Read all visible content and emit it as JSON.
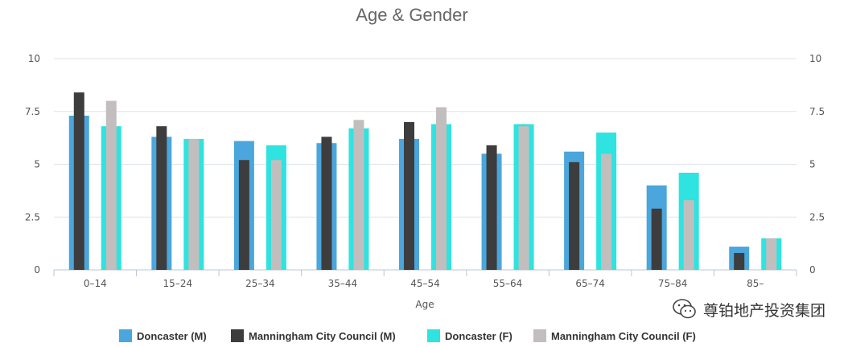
{
  "chart_data": {
    "type": "bar",
    "title": "Age & Gender",
    "xlabel": "Age",
    "ylabel": "",
    "categories": [
      "0–14",
      "15–24",
      "25–34",
      "35–44",
      "45–54",
      "55–64",
      "65–74",
      "75–84",
      "85–"
    ],
    "ylim": [
      0,
      10
    ],
    "yticks": [
      "0",
      "2.5",
      "5",
      "7.5",
      "10"
    ],
    "ytick_values": [
      0,
      2.5,
      5,
      7.5,
      10
    ],
    "grid": true,
    "legend_position": "bottom",
    "series": [
      {
        "name": "Doncaster (M)",
        "color": "#4aa6dc",
        "values": [
          7.3,
          6.3,
          6.1,
          6.0,
          6.2,
          5.5,
          5.6,
          4.0,
          1.1
        ]
      },
      {
        "name": "Manningham City Council (M)",
        "color": "#3d3d3d",
        "values": [
          8.4,
          6.8,
          5.2,
          6.3,
          7.0,
          5.9,
          5.1,
          2.9,
          0.8
        ]
      },
      {
        "name": "Doncaster (F)",
        "color": "#2ee3e0",
        "values": [
          6.8,
          6.2,
          5.9,
          6.7,
          6.9,
          6.9,
          6.5,
          4.6,
          1.5
        ]
      },
      {
        "name": "Manningham City Council (F)",
        "color": "#c2bebe",
        "values": [
          8.0,
          6.2,
          5.2,
          7.1,
          7.7,
          6.8,
          5.5,
          3.3,
          1.5
        ]
      }
    ]
  },
  "watermark": {
    "text": "尊铂地产投资集团",
    "icon": "wechat-icon"
  }
}
